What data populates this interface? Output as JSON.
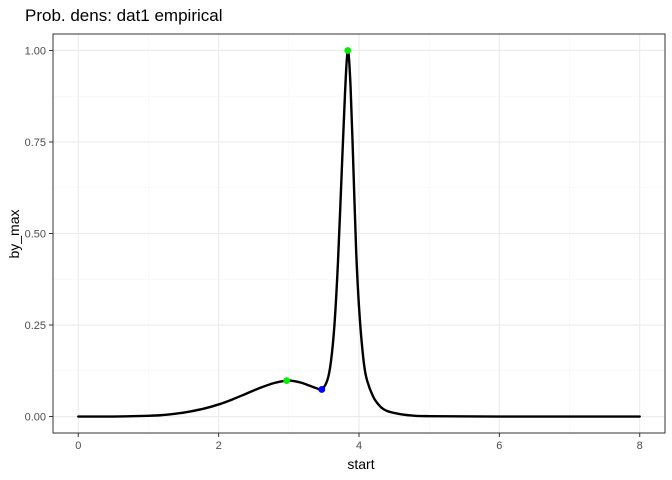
{
  "chart_data": {
    "type": "line",
    "title": "Prob. dens: dat1 empirical",
    "xlabel": "start",
    "ylabel": "by_max",
    "xlim": [
      0,
      8
    ],
    "ylim": [
      0,
      1
    ],
    "x_ticks": [
      0,
      2,
      4,
      6,
      8
    ],
    "x_tick_labels": [
      "0",
      "2",
      "4",
      "6",
      "8"
    ],
    "y_ticks": [
      0,
      0.25,
      0.5,
      0.75,
      1
    ],
    "y_tick_labels": [
      "0.00",
      "0.25",
      "0.50",
      "0.75",
      "1.00"
    ],
    "grid": true,
    "legend": "none",
    "series": [
      {
        "color": "#000000",
        "x": [
          0,
          0.5,
          1.0,
          1.2,
          1.4,
          1.6,
          1.8,
          2.0,
          2.2,
          2.4,
          2.6,
          2.8,
          2.97,
          3.1,
          3.2,
          3.3,
          3.4,
          3.47,
          3.55,
          3.6,
          3.65,
          3.7,
          3.75,
          3.8,
          3.84,
          3.88,
          3.92,
          3.96,
          4.0,
          4.05,
          4.1,
          4.2,
          4.3,
          4.4,
          4.6,
          4.8,
          5.0,
          6.0,
          7.0,
          8.0
        ],
        "y": [
          0.0,
          0.0,
          0.002,
          0.004,
          0.008,
          0.014,
          0.022,
          0.033,
          0.047,
          0.063,
          0.079,
          0.092,
          0.098,
          0.096,
          0.091,
          0.084,
          0.077,
          0.074,
          0.1,
          0.15,
          0.25,
          0.42,
          0.65,
          0.88,
          1.0,
          0.9,
          0.68,
          0.45,
          0.3,
          0.18,
          0.11,
          0.055,
          0.028,
          0.015,
          0.006,
          0.002,
          0.001,
          0.0,
          0.0,
          0.0
        ]
      }
    ],
    "points": [
      {
        "x": 2.97,
        "y": 0.098,
        "color": "#00ee00"
      },
      {
        "x": 3.84,
        "y": 1.0,
        "color": "#00ee00"
      },
      {
        "x": 3.47,
        "y": 0.074,
        "color": "#0000ff"
      }
    ],
    "colors": {
      "panel_border": "#333333",
      "grid_major": "#ebebeb",
      "grid_minor": "#f5f5f5"
    }
  }
}
